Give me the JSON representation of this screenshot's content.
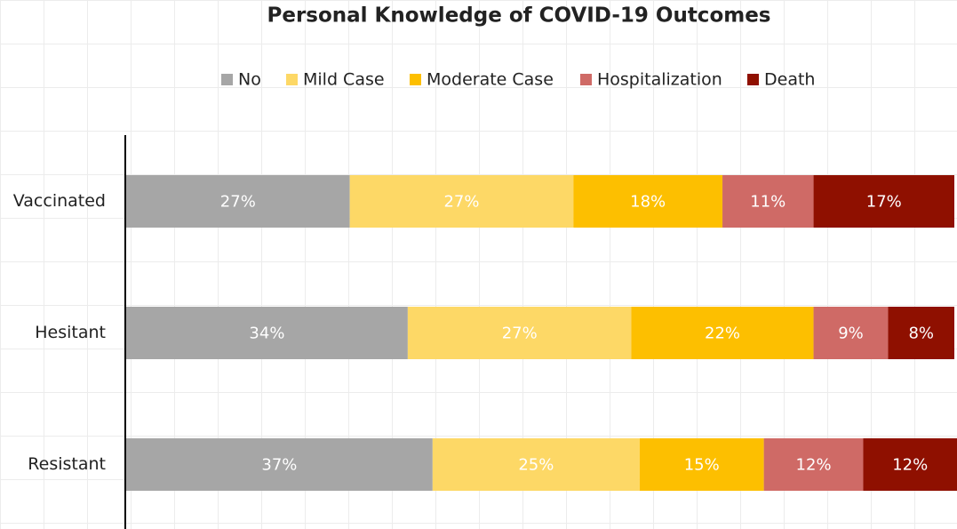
{
  "chart_data": {
    "type": "stacked-bar-horizontal",
    "title": "Personal Knowledge of COVID-19 Outcomes",
    "categories": [
      "Vaccinated",
      "Hesitant",
      "Resistant"
    ],
    "series": [
      {
        "name": "No",
        "color": "#a6a6a6",
        "values": [
          27,
          34,
          37
        ],
        "value_labels": [
          "27%",
          "34%",
          "37%"
        ]
      },
      {
        "name": "Mild Case",
        "color": "#fdd866",
        "values": [
          27,
          27,
          25
        ],
        "value_labels": [
          "27%",
          "27%",
          "25%"
        ]
      },
      {
        "name": "Moderate Case",
        "color": "#fdbf00",
        "values": [
          18,
          22,
          15
        ],
        "value_labels": [
          "18%",
          "22%",
          "15%"
        ]
      },
      {
        "name": "Hospitalization",
        "color": "#cf6a66",
        "values": [
          11,
          9,
          12
        ],
        "value_labels": [
          "11%",
          "9%",
          "12%"
        ]
      },
      {
        "name": "Death",
        "color": "#8f1000",
        "values": [
          17,
          8,
          12
        ],
        "value_labels": [
          "17%",
          "8%",
          "12%"
        ]
      }
    ],
    "xlim": [
      0,
      100
    ],
    "legend": "top"
  }
}
